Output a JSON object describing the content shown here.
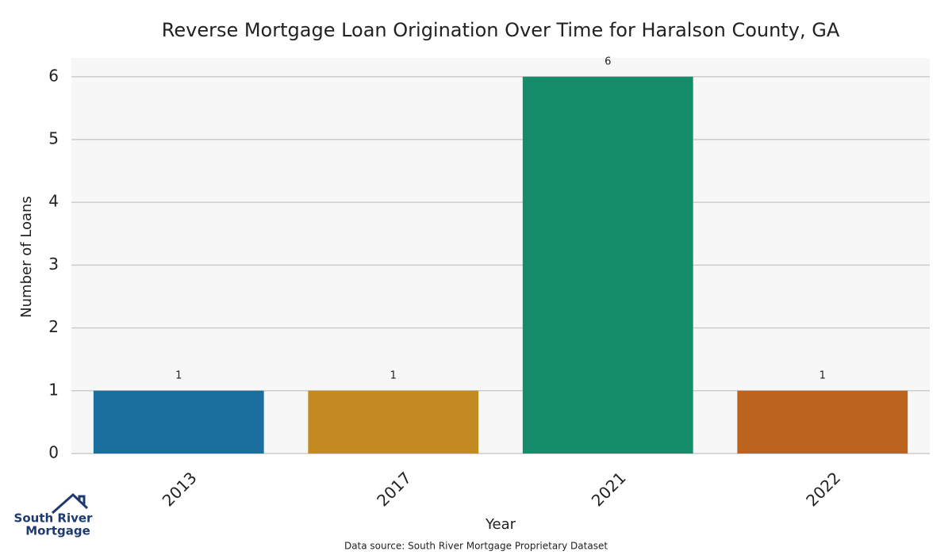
{
  "chart_data": {
    "type": "bar",
    "title": "Reverse Mortgage Loan Origination Over Time for Haralson County, GA",
    "x_label": "Year",
    "y_label": "Number of Loans",
    "categories": [
      "2013",
      "2017",
      "2021",
      "2022"
    ],
    "values": [
      1,
      1,
      6,
      1
    ],
    "colors": [
      "#1a6f9e",
      "#c48a22",
      "#168d6a",
      "#bb631f"
    ],
    "ylim": [
      0,
      6.3
    ],
    "yticks": [
      0,
      1,
      2,
      3,
      4,
      5,
      6
    ],
    "grid": true
  },
  "source": "Data source: South River Mortgage Proprietary Dataset",
  "logo": {
    "line1": "South River",
    "line2": "Mortgage"
  }
}
